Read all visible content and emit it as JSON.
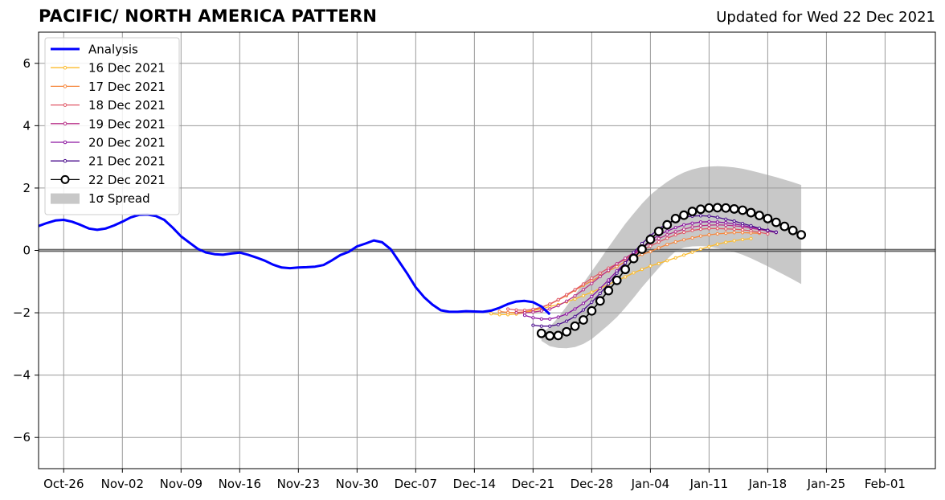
{
  "title": "PACIFIC/ NORTH AMERICA PATTERN",
  "subtitle": "Updated for Wed 22 Dec 2021",
  "chart_data": {
    "type": "line",
    "title": "PACIFIC/ NORTH AMERICA PATTERN",
    "subtitle": "Updated for Wed 22 Dec 2021",
    "xlabel": "",
    "ylabel": "",
    "ylim": [
      -7,
      7
    ],
    "xlim": [
      "2021-10-23",
      "2022-02-07"
    ],
    "yticks": [
      "6",
      "4",
      "2",
      "0",
      "−2",
      "−4",
      "−6"
    ],
    "xticks": [
      {
        "date": "2021-10-26",
        "label": "Oct-26"
      },
      {
        "date": "2021-11-02",
        "label": "Nov-02"
      },
      {
        "date": "2021-11-09",
        "label": "Nov-09"
      },
      {
        "date": "2021-11-16",
        "label": "Nov-16"
      },
      {
        "date": "2021-11-23",
        "label": "Nov-23"
      },
      {
        "date": "2021-11-30",
        "label": "Nov-30"
      },
      {
        "date": "2021-12-07",
        "label": "Dec-07"
      },
      {
        "date": "2021-12-14",
        "label": "Dec-14"
      },
      {
        "date": "2021-12-21",
        "label": "Dec-21"
      },
      {
        "date": "2021-12-28",
        "label": "Dec-28"
      },
      {
        "date": "2022-01-04",
        "label": "Jan-04"
      },
      {
        "date": "2022-01-11",
        "label": "Jan-11"
      },
      {
        "date": "2022-01-18",
        "label": "Jan-18"
      },
      {
        "date": "2022-01-25",
        "label": "Jan-25"
      },
      {
        "date": "2022-02-01",
        "label": "Feb-01"
      }
    ],
    "grid": true,
    "legend_position": "top-left",
    "analysis": {
      "name": "Analysis",
      "color": "#0000ff",
      "start_date": "2021-10-23",
      "values": [
        0.78,
        0.88,
        0.96,
        0.98,
        0.92,
        0.82,
        0.7,
        0.66,
        0.7,
        0.8,
        0.92,
        1.06,
        1.14,
        1.15,
        1.1,
        0.98,
        0.73,
        0.45,
        0.25,
        0.05,
        -0.07,
        -0.12,
        -0.14,
        -0.1,
        -0.07,
        -0.14,
        -0.23,
        -0.33,
        -0.46,
        -0.55,
        -0.57,
        -0.55,
        -0.54,
        -0.52,
        -0.47,
        -0.32,
        -0.15,
        -0.05,
        0.13,
        0.22,
        0.32,
        0.26,
        0.04,
        -0.35,
        -0.75,
        -1.18,
        -1.5,
        -1.74,
        -1.92,
        -1.97,
        -1.97,
        -1.95,
        -1.96,
        -1.97,
        -1.93,
        -1.84,
        -1.72,
        -1.64,
        -1.62,
        -1.66,
        -1.8,
        -2.05
      ]
    },
    "forecasts": [
      {
        "name": "16 Dec 2021",
        "color": "#fcbb2b",
        "start_date": "2021-12-16",
        "values": [
          -2.03,
          -2.06,
          -2.06,
          -2.04,
          -2.0,
          -1.93,
          -1.88,
          -1.8,
          -1.74,
          -1.65,
          -1.56,
          -1.45,
          -1.34,
          -1.22,
          -1.09,
          -0.97,
          -0.85,
          -0.72,
          -0.61,
          -0.5,
          -0.42,
          -0.33,
          -0.24,
          -0.15,
          -0.06,
          0.04,
          0.12,
          0.2,
          0.26,
          0.31,
          0.35,
          0.38
        ]
      },
      {
        "name": "17 Dec 2021",
        "color": "#f6873d",
        "start_date": "2021-12-17",
        "values": [
          -1.96,
          -1.99,
          -1.99,
          -1.97,
          -1.92,
          -1.83,
          -1.73,
          -1.59,
          -1.45,
          -1.28,
          -1.12,
          -0.98,
          -0.82,
          -0.66,
          -0.52,
          -0.36,
          -0.24,
          -0.13,
          -0.04,
          0.08,
          0.19,
          0.27,
          0.34,
          0.4,
          0.46,
          0.5,
          0.53,
          0.55,
          0.57,
          0.57,
          0.56,
          0.55
        ]
      },
      {
        "name": "18 Dec 2021",
        "color": "#e05766",
        "start_date": "2021-12-18",
        "values": [
          -1.88,
          -1.91,
          -1.92,
          -1.89,
          -1.82,
          -1.72,
          -1.58,
          -1.42,
          -1.26,
          -1.08,
          -0.89,
          -0.73,
          -0.57,
          -0.43,
          -0.28,
          -0.13,
          0.0,
          0.14,
          0.27,
          0.39,
          0.5,
          0.58,
          0.64,
          0.68,
          0.7,
          0.7,
          0.69,
          0.68,
          0.66,
          0.63,
          0.58,
          0.53
        ]
      },
      {
        "name": "19 Dec 2021",
        "color": "#b83289",
        "start_date": "2021-12-19",
        "values": [
          -2.0,
          -2.0,
          -1.98,
          -1.94,
          -1.88,
          -1.77,
          -1.63,
          -1.46,
          -1.26,
          -1.06,
          -0.84,
          -0.64,
          -0.43,
          -0.25,
          -0.07,
          0.09,
          0.24,
          0.38,
          0.5,
          0.6,
          0.68,
          0.75,
          0.79,
          0.81,
          0.82,
          0.81,
          0.79,
          0.76,
          0.71,
          0.67,
          0.62,
          0.57
        ]
      },
      {
        "name": "20 Dec 2021",
        "color": "#8c14a0",
        "start_date": "2021-12-20",
        "values": [
          -2.08,
          -2.16,
          -2.2,
          -2.2,
          -2.14,
          -2.04,
          -1.88,
          -1.7,
          -1.48,
          -1.22,
          -0.95,
          -0.66,
          -0.4,
          -0.13,
          0.1,
          0.31,
          0.49,
          0.62,
          0.73,
          0.82,
          0.87,
          0.91,
          0.92,
          0.91,
          0.89,
          0.85,
          0.8,
          0.75,
          0.7,
          0.65,
          0.59
        ]
      },
      {
        "name": "21 Dec 2021",
        "color": "#4a0d8c",
        "start_date": "2021-12-21",
        "values": [
          -2.4,
          -2.43,
          -2.43,
          -2.38,
          -2.27,
          -2.12,
          -1.91,
          -1.66,
          -1.38,
          -1.07,
          -0.73,
          -0.4,
          -0.06,
          0.22,
          0.47,
          0.69,
          0.86,
          0.98,
          1.06,
          1.1,
          1.11,
          1.1,
          1.06,
          1.0,
          0.94,
          0.86,
          0.79,
          0.71,
          0.64,
          0.58
        ]
      },
      {
        "name": "22 Dec 2021",
        "color": "#000000",
        "start_date": "2021-12-22",
        "values": [
          -2.66,
          -2.74,
          -2.73,
          -2.61,
          -2.43,
          -2.23,
          -1.94,
          -1.62,
          -1.29,
          -0.96,
          -0.61,
          -0.26,
          0.04,
          0.35,
          0.61,
          0.82,
          1.02,
          1.13,
          1.25,
          1.32,
          1.36,
          1.37,
          1.36,
          1.33,
          1.29,
          1.21,
          1.12,
          1.02,
          0.9,
          0.77,
          0.64,
          0.5
        ]
      }
    ],
    "spread": {
      "name": "1σ Spread",
      "color": "#c8c8c8",
      "start_date": "2021-12-22",
      "upper": [
        -2.66,
        -2.45,
        -2.15,
        -1.79,
        -1.43,
        -1.05,
        -0.67,
        -0.29,
        0.1,
        0.48,
        0.85,
        1.18,
        1.5,
        1.78,
        2.0,
        2.2,
        2.37,
        2.5,
        2.6,
        2.66,
        2.69,
        2.7,
        2.69,
        2.66,
        2.62,
        2.56,
        2.49,
        2.42,
        2.35,
        2.27,
        2.19,
        2.1
      ],
      "lower": [
        -2.9,
        -3.07,
        -3.13,
        -3.14,
        -3.1,
        -3.0,
        -2.84,
        -2.62,
        -2.39,
        -2.14,
        -1.84,
        -1.52,
        -1.18,
        -0.87,
        -0.56,
        -0.28,
        -0.03,
        0.09,
        0.13,
        0.14,
        0.12,
        0.07,
        0.02,
        -0.05,
        -0.14,
        -0.25,
        -0.38,
        -0.51,
        -0.65,
        -0.79,
        -0.93,
        -1.08
      ]
    }
  }
}
